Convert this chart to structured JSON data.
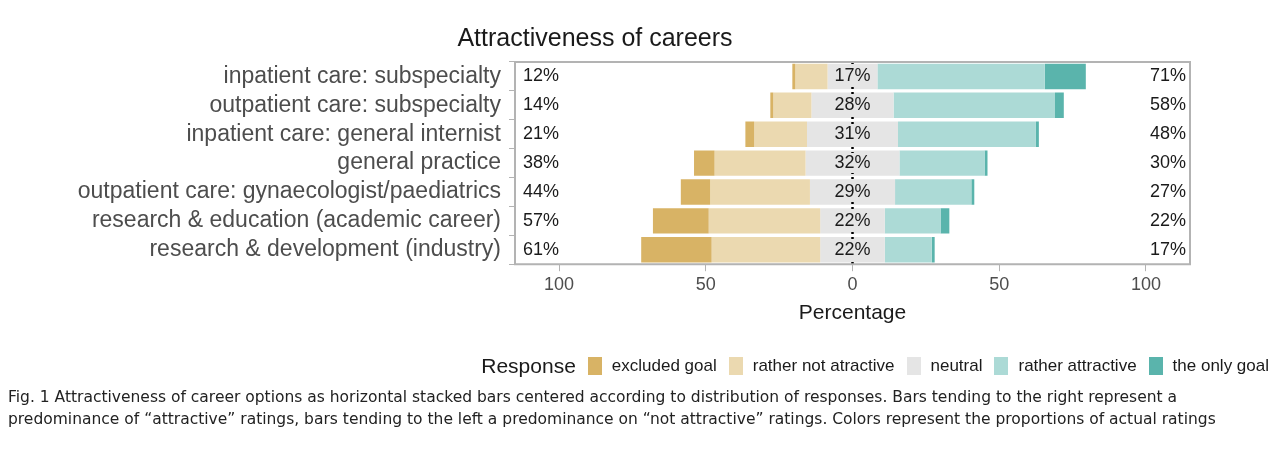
{
  "chart_data": {
    "type": "bar",
    "orientation": "horizontal",
    "title": "Attractiveness of careers",
    "xlabel": "Percentage",
    "legend_title": "Response",
    "legend": "bottom",
    "categories": [
      "inpatient care: subspecialty",
      "outpatient care: subspecialty",
      "inpatient care: general internist",
      "general practice",
      "outpatient care: gynaecologist/paediatrics",
      "research & education (academic career)",
      "research & development (industry)"
    ],
    "series": [
      {
        "name": "excluded goal",
        "color": "#d8b365",
        "base": [
          -20.5,
          -28,
          -36.5,
          -54,
          -58.5,
          -68,
          -72
        ],
        "values": [
          1,
          1,
          3,
          7,
          10,
          19,
          24
        ]
      },
      {
        "name": "rather not atractive",
        "color": "#ebd9b0",
        "base": [
          -19.5,
          -27,
          -33.5,
          -47,
          -48.5,
          -49,
          -48
        ],
        "values": [
          11,
          13,
          18,
          31,
          34,
          38,
          37
        ]
      },
      {
        "name": "neutral",
        "color": "#e5e5e5",
        "base": [
          -8.5,
          -14,
          -15.5,
          -16,
          -14.5,
          -11,
          -11
        ],
        "values": [
          17,
          28,
          31,
          32,
          29,
          22,
          22
        ]
      },
      {
        "name": "rather attractive",
        "color": "#acdad6",
        "base": [
          8.5,
          14,
          15.5,
          16,
          14.5,
          11,
          11
        ],
        "values": [
          57,
          55,
          47,
          29,
          26,
          19,
          16
        ]
      },
      {
        "name": "the only goal",
        "color": "#5ab4ac",
        "base": [
          65.5,
          69,
          62.5,
          45,
          40.5,
          30,
          27
        ],
        "values": [
          14,
          3,
          1,
          1,
          1,
          3,
          1
        ]
      }
    ],
    "xlim": [
      -115,
      115
    ],
    "xticks": [
      {
        "value": -100,
        "label": "100"
      },
      {
        "value": -50,
        "label": "50"
      },
      0,
      50,
      100
    ],
    "ref_lines": [
      {
        "axis": "x",
        "value": 0,
        "color": "#000000",
        "line_style": "dotted"
      }
    ],
    "annotations": [
      "12%",
      "14%",
      "21%",
      "38%",
      "44%",
      "57%",
      "61%",
      "71%",
      "58%",
      "48%",
      "30%",
      "27%",
      "22%",
      "17%",
      "17%",
      "28%",
      "31%",
      "32%",
      "29%",
      "22%",
      "22%",
      "Fig. 1  Attractiveness of career options as horizontal stacked bars centered according to distribution of responses. Bars tending to the right represent a predominance of “attractive” ratings, bars tending to the left a predominance on “not attractive” ratings. Colors represent the proportions of actual ratings"
    ]
  }
}
